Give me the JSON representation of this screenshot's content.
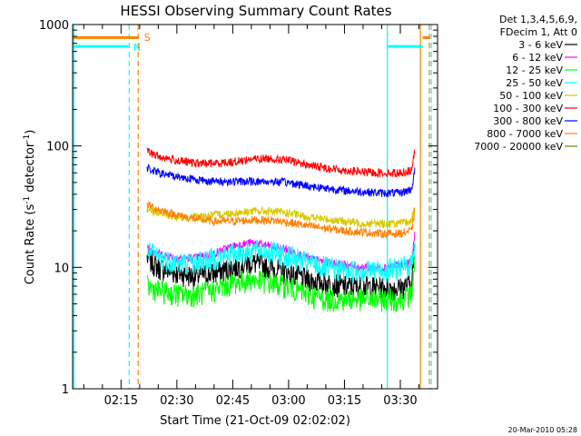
{
  "chart_data": {
    "type": "line",
    "title": "HESSI Observing Summary Count Rates",
    "xlabel": "Start Time (21-Oct-09 02:02:02)",
    "ylabel_main": "Count Rate (s",
    "ylabel_sup1": "-1",
    "ylabel_mid": " detector",
    "ylabel_sup2": "-1",
    "ylabel_end": ")",
    "yscale": "log",
    "ylim": [
      1,
      1000
    ],
    "xlim_minutes": [
      122,
      220
    ],
    "y_ticks": [
      {
        "v": 1,
        "label": "1"
      },
      {
        "v": 10,
        "label": "10"
      },
      {
        "v": 100,
        "label": "100"
      },
      {
        "v": 1000,
        "label": "1000"
      }
    ],
    "x_ticks": [
      {
        "m": 135,
        "label": "02:15"
      },
      {
        "m": 150,
        "label": "02:30"
      },
      {
        "m": 165,
        "label": "02:45"
      },
      {
        "m": 180,
        "label": "03:00"
      },
      {
        "m": 195,
        "label": "03:15"
      },
      {
        "m": 210,
        "label": "03:30"
      }
    ],
    "legend_header": [
      "Det 1,3,4,5,6,9,",
      "FDecim 1, Att 0"
    ],
    "series": [
      {
        "name": "3 - 6 keV",
        "color": "#000000",
        "points": [
          [
            142,
            12
          ],
          [
            145,
            10
          ],
          [
            150,
            9
          ],
          [
            155,
            8.5
          ],
          [
            160,
            9
          ],
          [
            165,
            10
          ],
          [
            170,
            11
          ],
          [
            175,
            10
          ],
          [
            180,
            9
          ],
          [
            185,
            8
          ],
          [
            190,
            7.5
          ],
          [
            195,
            7
          ],
          [
            200,
            7
          ],
          [
            205,
            6.8
          ],
          [
            210,
            6.8
          ],
          [
            213,
            7.5
          ],
          [
            214,
            15
          ]
        ]
      },
      {
        "name": "6 - 12 keV",
        "color": "#ff00ff",
        "points": [
          [
            142,
            15
          ],
          [
            145,
            13
          ],
          [
            150,
            12
          ],
          [
            155,
            12
          ],
          [
            160,
            13
          ],
          [
            165,
            15
          ],
          [
            170,
            16
          ],
          [
            175,
            15
          ],
          [
            180,
            14
          ],
          [
            185,
            12
          ],
          [
            190,
            11
          ],
          [
            195,
            10.5
          ],
          [
            200,
            10
          ],
          [
            205,
            10
          ],
          [
            210,
            10.5
          ],
          [
            213,
            11
          ],
          [
            214,
            20
          ]
        ]
      },
      {
        "name": "12 - 25 keV",
        "color": "#00ff00",
        "points": [
          [
            142,
            7
          ],
          [
            145,
            6.5
          ],
          [
            150,
            6
          ],
          [
            155,
            6
          ],
          [
            160,
            6.5
          ],
          [
            165,
            7.5
          ],
          [
            170,
            8
          ],
          [
            175,
            7.5
          ],
          [
            180,
            7
          ],
          [
            185,
            6
          ],
          [
            190,
            5.5
          ],
          [
            195,
            5.5
          ],
          [
            200,
            5.5
          ],
          [
            205,
            5.5
          ],
          [
            210,
            5.5
          ],
          [
            213,
            6
          ],
          [
            214,
            12
          ]
        ]
      },
      {
        "name": "25 - 50 keV",
        "color": "#00ffff",
        "points": [
          [
            142,
            14
          ],
          [
            145,
            12
          ],
          [
            150,
            11
          ],
          [
            155,
            11
          ],
          [
            160,
            12
          ],
          [
            165,
            13
          ],
          [
            170,
            14
          ],
          [
            175,
            13.5
          ],
          [
            180,
            12.5
          ],
          [
            185,
            11
          ],
          [
            190,
            10
          ],
          [
            195,
            9.5
          ],
          [
            200,
            9.5
          ],
          [
            205,
            9.5
          ],
          [
            210,
            10
          ],
          [
            213,
            10.5
          ],
          [
            214,
            18
          ]
        ]
      },
      {
        "name": "50 - 100 keV",
        "color": "#d8c800",
        "points": [
          [
            142,
            30
          ],
          [
            145,
            28
          ],
          [
            150,
            26
          ],
          [
            155,
            26
          ],
          [
            160,
            27
          ],
          [
            165,
            28
          ],
          [
            170,
            29
          ],
          [
            175,
            29
          ],
          [
            180,
            28
          ],
          [
            185,
            26
          ],
          [
            190,
            25
          ],
          [
            195,
            24
          ],
          [
            200,
            23
          ],
          [
            205,
            23
          ],
          [
            210,
            23
          ],
          [
            213,
            24
          ],
          [
            214,
            35
          ]
        ]
      },
      {
        "name": "100 - 300 keV",
        "color": "#ff0000",
        "points": [
          [
            142,
            90
          ],
          [
            145,
            82
          ],
          [
            150,
            76
          ],
          [
            155,
            72
          ],
          [
            160,
            72
          ],
          [
            165,
            74
          ],
          [
            170,
            78
          ],
          [
            175,
            79
          ],
          [
            180,
            76
          ],
          [
            185,
            70
          ],
          [
            190,
            66
          ],
          [
            195,
            63
          ],
          [
            200,
            61
          ],
          [
            205,
            60
          ],
          [
            210,
            60
          ],
          [
            213,
            63
          ],
          [
            214,
            95
          ]
        ]
      },
      {
        "name": "300 - 800 keV",
        "color": "#0000ff",
        "points": [
          [
            142,
            66
          ],
          [
            145,
            60
          ],
          [
            150,
            56
          ],
          [
            155,
            53
          ],
          [
            160,
            51
          ],
          [
            165,
            51
          ],
          [
            170,
            51
          ],
          [
            175,
            51
          ],
          [
            180,
            50
          ],
          [
            185,
            47
          ],
          [
            190,
            45
          ],
          [
            195,
            43
          ],
          [
            200,
            42
          ],
          [
            205,
            41
          ],
          [
            210,
            41
          ],
          [
            213,
            44
          ],
          [
            214,
            65
          ]
        ]
      },
      {
        "name": "800 - 7000 keV",
        "color": "#ff8000",
        "points": [
          [
            142,
            33
          ],
          [
            145,
            30
          ],
          [
            150,
            27
          ],
          [
            155,
            25
          ],
          [
            160,
            24
          ],
          [
            165,
            24
          ],
          [
            170,
            24.5
          ],
          [
            175,
            24.5
          ],
          [
            180,
            23.5
          ],
          [
            185,
            22
          ],
          [
            190,
            21
          ],
          [
            195,
            20
          ],
          [
            200,
            19.5
          ],
          [
            205,
            19
          ],
          [
            210,
            19
          ],
          [
            213,
            20
          ],
          [
            214,
            30
          ]
        ]
      },
      {
        "name": "7000 - 20000 keV",
        "color": "#808000",
        "points": []
      }
    ],
    "flat_segments": [
      {
        "series": "800 - 7000 keV",
        "x0": 122,
        "x1": 139.5,
        "y": 780
      },
      {
        "series": "25 - 50 keV",
        "x0": 122,
        "x1": 137,
        "y": 660
      },
      {
        "series": "25 - 50 keV",
        "x0": 206.5,
        "x1": 216,
        "y": 660
      },
      {
        "series": "800 - 7000 keV",
        "x0": 216,
        "x1": 218,
        "y": 780
      }
    ],
    "annotations": [
      {
        "text": "S",
        "color": "#ff8000",
        "m": 141.2,
        "v": 800
      },
      {
        "text": "N",
        "color": "#00ffff",
        "m": 138.3,
        "v": 660
      }
    ],
    "vlines": [
      {
        "m": 122.3,
        "color": "#00ffff",
        "style": "solid"
      },
      {
        "m": 137.2,
        "color": "#00ffff",
        "style": "dashed"
      },
      {
        "m": 139.6,
        "color": "#ff8000",
        "style": "dashed"
      },
      {
        "m": 206.5,
        "color": "#00ffff",
        "style": "solid"
      },
      {
        "m": 215.4,
        "color": "#ff8000",
        "style": "solid"
      },
      {
        "m": 217.8,
        "color": "#ff8000",
        "style": "dashed"
      },
      {
        "m": 218.3,
        "color": "#00ffff",
        "style": "dashed"
      }
    ],
    "footer": "20-Mar-2010 05:28"
  }
}
